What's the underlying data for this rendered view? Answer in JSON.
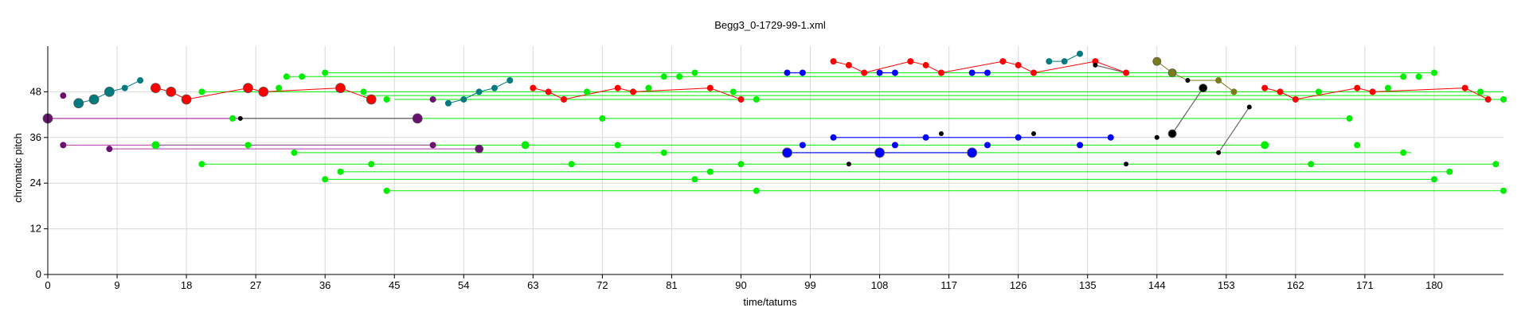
{
  "chart_data": {
    "type": "scatter",
    "title": "Begg3_0-1729-99-1.xml",
    "xlabel": "time/tatums",
    "ylabel": "chromatic pitch",
    "xlim": [
      0,
      189
    ],
    "ylim": [
      0,
      60
    ],
    "x_ticks": [
      0,
      9,
      18,
      27,
      36,
      45,
      54,
      63,
      72,
      81,
      90,
      99,
      108,
      117,
      126,
      135,
      144,
      153,
      162,
      171,
      180
    ],
    "y_ticks": [
      0,
      12,
      24,
      36,
      48
    ],
    "grid": true,
    "legend": "none",
    "colors": {
      "green": "#00ee00",
      "red": "#ff0000",
      "teal": "#007b80",
      "blue": "#0000ff",
      "purple": "#6a1070",
      "black": "#000000",
      "olive": "#7a7a18",
      "magenta": "#b03ab0",
      "gray": "#666666"
    },
    "green_lines": [
      {
        "x": [
          36,
          180
        ],
        "y": 53
      },
      {
        "x": [
          31,
          176
        ],
        "y": 52
      },
      {
        "x": [
          20,
          189
        ],
        "y": 48
      },
      {
        "x": [
          41,
          187
        ],
        "y": 47
      },
      {
        "x": [
          45,
          189
        ],
        "y": 46
      },
      {
        "x": [
          24,
          169
        ],
        "y": 41
      },
      {
        "x": [
          14,
          158
        ],
        "y": 34
      },
      {
        "x": [
          32,
          177
        ],
        "y": 32
      },
      {
        "x": [
          20,
          188
        ],
        "y": 29
      },
      {
        "x": [
          38,
          182
        ],
        "y": 27
      },
      {
        "x": [
          36,
          180
        ],
        "y": 25
      },
      {
        "x": [
          44,
          189
        ],
        "y": 22
      }
    ],
    "red_lines": [
      [
        [
          14,
          49
        ],
        [
          16,
          48
        ],
        [
          18,
          46
        ],
        [
          26,
          49
        ],
        [
          28,
          48
        ],
        [
          38,
          49
        ],
        [
          42,
          46
        ]
      ],
      [
        [
          63,
          49
        ],
        [
          65,
          48
        ],
        [
          67,
          46
        ],
        [
          74,
          49
        ],
        [
          76,
          48
        ],
        [
          86,
          49
        ],
        [
          90,
          46
        ]
      ],
      [
        [
          102,
          56
        ],
        [
          104,
          55
        ],
        [
          106,
          53
        ],
        [
          112,
          56
        ],
        [
          114,
          55
        ],
        [
          116,
          53
        ],
        [
          124,
          56
        ],
        [
          126,
          55
        ],
        [
          128,
          53
        ],
        [
          136,
          56
        ],
        [
          140,
          53
        ]
      ],
      [
        [
          158,
          49
        ],
        [
          160,
          48
        ],
        [
          162,
          46
        ],
        [
          170,
          49
        ],
        [
          172,
          48
        ],
        [
          184,
          49
        ],
        [
          187,
          46
        ]
      ]
    ],
    "teal_lines": [
      [
        [
          4,
          45
        ],
        [
          6,
          46
        ],
        [
          8,
          48
        ],
        [
          10,
          49
        ],
        [
          12,
          51
        ]
      ],
      [
        [
          52,
          45
        ],
        [
          54,
          46
        ],
        [
          56,
          48
        ],
        [
          58,
          49
        ],
        [
          60,
          51
        ]
      ],
      [
        [
          130,
          56
        ],
        [
          132,
          56
        ],
        [
          134,
          58
        ]
      ]
    ],
    "blue_lines": [
      [
        [
          102,
          36
        ],
        [
          114,
          36
        ],
        [
          126,
          36
        ],
        [
          138,
          36
        ]
      ],
      [
        [
          96,
          32
        ],
        [
          108,
          32
        ],
        [
          120,
          32
        ]
      ],
      [
        [
          96,
          53
        ],
        [
          98,
          53
        ]
      ],
      [
        [
          108,
          53
        ],
        [
          110,
          53
        ]
      ],
      [
        [
          120,
          53
        ],
        [
          122,
          53
        ]
      ]
    ],
    "purple_lines": [
      [
        [
          2,
          47
        ],
        [
          2,
          47
        ]
      ],
      [
        [
          2,
          34
        ],
        [
          50,
          34
        ]
      ],
      [
        [
          8,
          33
        ],
        [
          56,
          33
        ]
      ]
    ],
    "magenta_lines": [
      [
        [
          0,
          41
        ],
        [
          48,
          41
        ]
      ]
    ],
    "black_lines": [
      [
        [
          25,
          41
        ],
        [
          48,
          41
        ]
      ],
      [
        [
          146,
          37
        ],
        [
          150,
          49
        ]
      ],
      [
        [
          152,
          32
        ],
        [
          156,
          44
        ]
      ],
      [
        [
          136,
          55
        ],
        [
          140,
          53
        ]
      ]
    ],
    "olive_lines": [
      [
        [
          144,
          56
        ],
        [
          146,
          53
        ],
        [
          148,
          51
        ],
        [
          152,
          51
        ],
        [
          154,
          48
        ]
      ]
    ],
    "points": [
      {
        "x": 2,
        "y": 47,
        "c": "purple",
        "s": 4
      },
      {
        "x": 2,
        "y": 34,
        "c": "purple",
        "s": 4
      },
      {
        "x": 8,
        "y": 33,
        "c": "purple",
        "s": 4
      },
      {
        "x": 0,
        "y": 41,
        "c": "purple",
        "s": 6
      },
      {
        "x": 48,
        "y": 41,
        "c": "purple",
        "s": 6
      },
      {
        "x": 50,
        "y": 46,
        "c": "purple",
        "s": 4
      },
      {
        "x": 50,
        "y": 34,
        "c": "purple",
        "s": 4
      },
      {
        "x": 56,
        "y": 33,
        "c": "purple",
        "s": 5
      },
      {
        "x": 4,
        "y": 45,
        "c": "teal",
        "s": 6
      },
      {
        "x": 6,
        "y": 46,
        "c": "teal",
        "s": 6
      },
      {
        "x": 8,
        "y": 48,
        "c": "teal",
        "s": 6
      },
      {
        "x": 10,
        "y": 49,
        "c": "teal",
        "s": 4
      },
      {
        "x": 12,
        "y": 51,
        "c": "teal",
        "s": 4
      },
      {
        "x": 52,
        "y": 45,
        "c": "teal",
        "s": 4
      },
      {
        "x": 54,
        "y": 46,
        "c": "teal",
        "s": 4
      },
      {
        "x": 56,
        "y": 48,
        "c": "teal",
        "s": 4
      },
      {
        "x": 58,
        "y": 49,
        "c": "teal",
        "s": 4
      },
      {
        "x": 60,
        "y": 51,
        "c": "teal",
        "s": 4
      },
      {
        "x": 130,
        "y": 56,
        "c": "teal",
        "s": 4
      },
      {
        "x": 132,
        "y": 56,
        "c": "teal",
        "s": 4
      },
      {
        "x": 134,
        "y": 58,
        "c": "teal",
        "s": 4
      },
      {
        "x": 14,
        "y": 49,
        "c": "red",
        "s": 6
      },
      {
        "x": 16,
        "y": 48,
        "c": "red",
        "s": 6
      },
      {
        "x": 18,
        "y": 46,
        "c": "red",
        "s": 6
      },
      {
        "x": 26,
        "y": 49,
        "c": "red",
        "s": 6
      },
      {
        "x": 28,
        "y": 48,
        "c": "red",
        "s": 6
      },
      {
        "x": 38,
        "y": 49,
        "c": "red",
        "s": 6
      },
      {
        "x": 42,
        "y": 46,
        "c": "red",
        "s": 6
      },
      {
        "x": 63,
        "y": 49,
        "c": "red",
        "s": 4
      },
      {
        "x": 65,
        "y": 48,
        "c": "red",
        "s": 4
      },
      {
        "x": 67,
        "y": 46,
        "c": "red",
        "s": 4
      },
      {
        "x": 74,
        "y": 49,
        "c": "red",
        "s": 4
      },
      {
        "x": 76,
        "y": 48,
        "c": "red",
        "s": 4
      },
      {
        "x": 86,
        "y": 49,
        "c": "red",
        "s": 4
      },
      {
        "x": 90,
        "y": 46,
        "c": "red",
        "s": 4
      },
      {
        "x": 102,
        "y": 56,
        "c": "red",
        "s": 4
      },
      {
        "x": 104,
        "y": 55,
        "c": "red",
        "s": 4
      },
      {
        "x": 106,
        "y": 53,
        "c": "red",
        "s": 4
      },
      {
        "x": 112,
        "y": 56,
        "c": "red",
        "s": 4
      },
      {
        "x": 114,
        "y": 55,
        "c": "red",
        "s": 4
      },
      {
        "x": 116,
        "y": 53,
        "c": "red",
        "s": 4
      },
      {
        "x": 124,
        "y": 56,
        "c": "red",
        "s": 4
      },
      {
        "x": 126,
        "y": 55,
        "c": "red",
        "s": 4
      },
      {
        "x": 128,
        "y": 53,
        "c": "red",
        "s": 4
      },
      {
        "x": 136,
        "y": 56,
        "c": "red",
        "s": 4
      },
      {
        "x": 140,
        "y": 53,
        "c": "red",
        "s": 4
      },
      {
        "x": 158,
        "y": 49,
        "c": "red",
        "s": 4
      },
      {
        "x": 160,
        "y": 48,
        "c": "red",
        "s": 4
      },
      {
        "x": 162,
        "y": 46,
        "c": "red",
        "s": 4
      },
      {
        "x": 170,
        "y": 49,
        "c": "red",
        "s": 4
      },
      {
        "x": 172,
        "y": 48,
        "c": "red",
        "s": 4
      },
      {
        "x": 184,
        "y": 49,
        "c": "red",
        "s": 4
      },
      {
        "x": 187,
        "y": 46,
        "c": "red",
        "s": 4
      },
      {
        "x": 96,
        "y": 53,
        "c": "blue",
        "s": 4
      },
      {
        "x": 98,
        "y": 53,
        "c": "blue",
        "s": 4
      },
      {
        "x": 108,
        "y": 53,
        "c": "blue",
        "s": 4
      },
      {
        "x": 110,
        "y": 53,
        "c": "blue",
        "s": 4
      },
      {
        "x": 120,
        "y": 53,
        "c": "blue",
        "s": 4
      },
      {
        "x": 122,
        "y": 53,
        "c": "blue",
        "s": 4
      },
      {
        "x": 102,
        "y": 36,
        "c": "blue",
        "s": 4
      },
      {
        "x": 114,
        "y": 36,
        "c": "blue",
        "s": 4
      },
      {
        "x": 126,
        "y": 36,
        "c": "blue",
        "s": 4
      },
      {
        "x": 138,
        "y": 36,
        "c": "blue",
        "s": 4
      },
      {
        "x": 96,
        "y": 32,
        "c": "blue",
        "s": 6
      },
      {
        "x": 108,
        "y": 32,
        "c": "blue",
        "s": 6
      },
      {
        "x": 120,
        "y": 32,
        "c": "blue",
        "s": 6
      },
      {
        "x": 98,
        "y": 34,
        "c": "blue",
        "s": 4
      },
      {
        "x": 110,
        "y": 34,
        "c": "blue",
        "s": 4
      },
      {
        "x": 122,
        "y": 34,
        "c": "blue",
        "s": 4
      },
      {
        "x": 134,
        "y": 34,
        "c": "blue",
        "s": 4
      },
      {
        "x": 25,
        "y": 41,
        "c": "black",
        "s": 3
      },
      {
        "x": 104,
        "y": 29,
        "c": "black",
        "s": 3
      },
      {
        "x": 116,
        "y": 37,
        "c": "black",
        "s": 3
      },
      {
        "x": 128,
        "y": 37,
        "c": "black",
        "s": 3
      },
      {
        "x": 136,
        "y": 55,
        "c": "black",
        "s": 3
      },
      {
        "x": 140,
        "y": 29,
        "c": "black",
        "s": 3
      },
      {
        "x": 144,
        "y": 36,
        "c": "black",
        "s": 3
      },
      {
        "x": 146,
        "y": 37,
        "c": "black",
        "s": 5
      },
      {
        "x": 148,
        "y": 51,
        "c": "black",
        "s": 3
      },
      {
        "x": 150,
        "y": 49,
        "c": "black",
        "s": 5
      },
      {
        "x": 152,
        "y": 32,
        "c": "black",
        "s": 3
      },
      {
        "x": 156,
        "y": 44,
        "c": "black",
        "s": 3
      },
      {
        "x": 144,
        "y": 56,
        "c": "olive",
        "s": 5
      },
      {
        "x": 146,
        "y": 53,
        "c": "olive",
        "s": 5
      },
      {
        "x": 152,
        "y": 51,
        "c": "olive",
        "s": 4
      },
      {
        "x": 154,
        "y": 48,
        "c": "olive",
        "s": 4
      }
    ],
    "green_points": [
      {
        "x": 36,
        "y": 53,
        "s": 4
      },
      {
        "x": 180,
        "y": 53,
        "s": 4
      },
      {
        "x": 31,
        "y": 52,
        "s": 4
      },
      {
        "x": 33,
        "y": 52,
        "s": 4
      },
      {
        "x": 80,
        "y": 52,
        "s": 4
      },
      {
        "x": 82,
        "y": 52,
        "s": 4
      },
      {
        "x": 84,
        "y": 53,
        "s": 4
      },
      {
        "x": 176,
        "y": 52,
        "s": 4
      },
      {
        "x": 178,
        "y": 52,
        "s": 4
      },
      {
        "x": 20,
        "y": 48,
        "s": 4
      },
      {
        "x": 30,
        "y": 49,
        "s": 4
      },
      {
        "x": 41,
        "y": 48,
        "s": 4
      },
      {
        "x": 70,
        "y": 48,
        "s": 4
      },
      {
        "x": 78,
        "y": 49,
        "s": 4
      },
      {
        "x": 89,
        "y": 48,
        "s": 4
      },
      {
        "x": 165,
        "y": 48,
        "s": 4
      },
      {
        "x": 174,
        "y": 49,
        "s": 4
      },
      {
        "x": 186,
        "y": 48,
        "s": 4
      },
      {
        "x": 44,
        "y": 46,
        "s": 4
      },
      {
        "x": 92,
        "y": 46,
        "s": 4
      },
      {
        "x": 189,
        "y": 46,
        "s": 4
      },
      {
        "x": 24,
        "y": 41,
        "s": 4
      },
      {
        "x": 72,
        "y": 41,
        "s": 4
      },
      {
        "x": 169,
        "y": 41,
        "s": 4
      },
      {
        "x": 14,
        "y": 34,
        "s": 5
      },
      {
        "x": 26,
        "y": 34,
        "s": 4
      },
      {
        "x": 62,
        "y": 34,
        "s": 5
      },
      {
        "x": 74,
        "y": 34,
        "s": 4
      },
      {
        "x": 158,
        "y": 34,
        "s": 5
      },
      {
        "x": 170,
        "y": 34,
        "s": 4
      },
      {
        "x": 32,
        "y": 32,
        "s": 4
      },
      {
        "x": 80,
        "y": 32,
        "s": 4
      },
      {
        "x": 176,
        "y": 32,
        "s": 4
      },
      {
        "x": 20,
        "y": 29,
        "s": 4
      },
      {
        "x": 42,
        "y": 29,
        "s": 4
      },
      {
        "x": 68,
        "y": 29,
        "s": 4
      },
      {
        "x": 90,
        "y": 29,
        "s": 4
      },
      {
        "x": 164,
        "y": 29,
        "s": 4
      },
      {
        "x": 188,
        "y": 29,
        "s": 4
      },
      {
        "x": 38,
        "y": 27,
        "s": 4
      },
      {
        "x": 86,
        "y": 27,
        "s": 4
      },
      {
        "x": 182,
        "y": 27,
        "s": 4
      },
      {
        "x": 36,
        "y": 25,
        "s": 4
      },
      {
        "x": 84,
        "y": 25,
        "s": 4
      },
      {
        "x": 180,
        "y": 25,
        "s": 4
      },
      {
        "x": 44,
        "y": 22,
        "s": 4
      },
      {
        "x": 92,
        "y": 22,
        "s": 4
      },
      {
        "x": 189,
        "y": 22,
        "s": 4
      }
    ]
  }
}
